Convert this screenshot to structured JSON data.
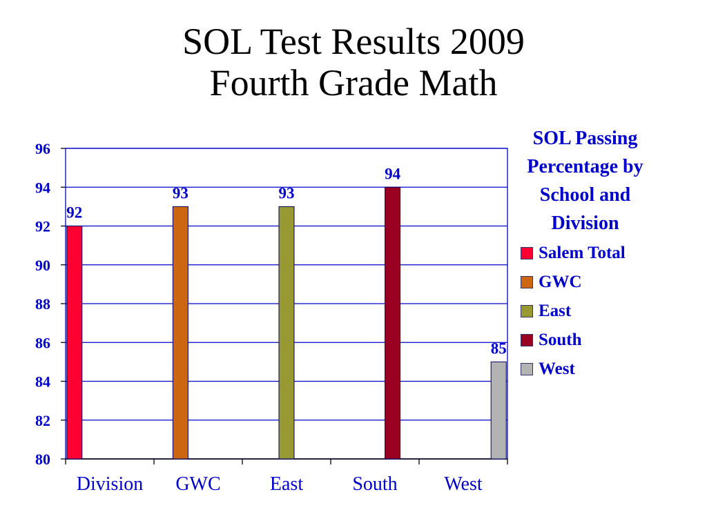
{
  "title": {
    "line1": "SOL Test Results 2009",
    "line2": "Fourth Grade Math"
  },
  "chart_data": {
    "type": "bar",
    "categories": [
      "Division",
      "GWC",
      "East",
      "South",
      "West"
    ],
    "series": [
      {
        "name": "Salem Total",
        "color": "#ff0033",
        "values": [
          92,
          null,
          null,
          null,
          null
        ]
      },
      {
        "name": "GWC",
        "color": "#cc6611",
        "values": [
          null,
          93,
          null,
          null,
          null
        ]
      },
      {
        "name": "East",
        "color": "#999933",
        "values": [
          null,
          null,
          93,
          null,
          null
        ]
      },
      {
        "name": "South",
        "color": "#990022",
        "values": [
          null,
          null,
          null,
          94,
          null
        ]
      },
      {
        "name": "West",
        "color": "#b3b3b3",
        "values": [
          null,
          null,
          null,
          null,
          85
        ]
      }
    ],
    "ylim": [
      80,
      96
    ],
    "yticks": [
      80,
      82,
      84,
      86,
      88,
      90,
      92,
      94,
      96
    ],
    "grid": true,
    "legend_title": "SOL Passing Percentage by School and Division",
    "legend_position": "right",
    "data_label_color": "#0000cc",
    "axis_color": "#0000cc",
    "category_label_color": "#0000cc"
  }
}
